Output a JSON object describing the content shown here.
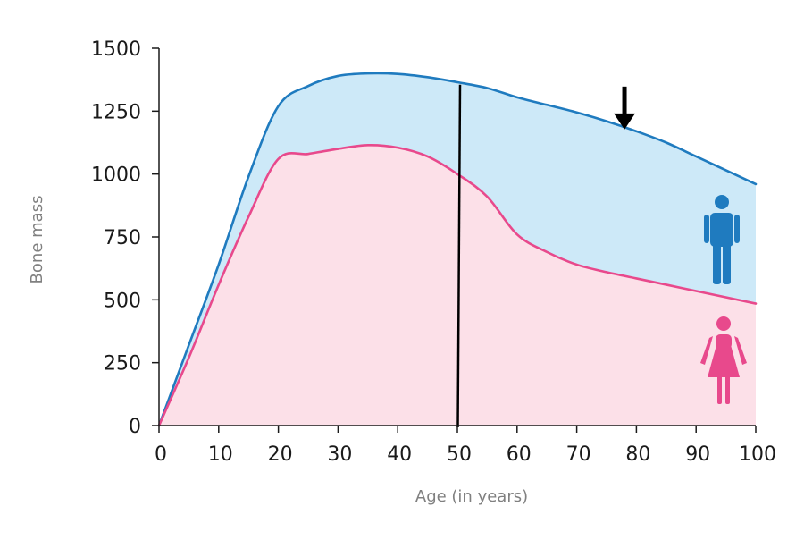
{
  "chart_data": {
    "type": "area",
    "title": "",
    "xlabel": "Age (in years)",
    "ylabel": "Bone mass",
    "xlim": [
      0,
      100
    ],
    "ylim": [
      0,
      1500
    ],
    "x_ticks": [
      0,
      10,
      20,
      30,
      40,
      50,
      60,
      70,
      80,
      90,
      100
    ],
    "y_ticks": [
      0,
      250,
      500,
      750,
      1000,
      1250,
      1500
    ],
    "grid": false,
    "legend": "none",
    "series": [
      {
        "color": "#1f7bbf",
        "fill": "#cde9f8",
        "icon": "man-icon",
        "x": [
          0,
          5,
          10,
          15,
          20,
          25,
          30,
          35,
          40,
          45,
          50,
          55,
          60,
          65,
          70,
          75,
          80,
          85,
          90,
          95,
          100
        ],
        "y": [
          0,
          320,
          640,
          990,
          1270,
          1350,
          1390,
          1400,
          1398,
          1385,
          1365,
          1342,
          1305,
          1275,
          1245,
          1210,
          1170,
          1125,
          1070,
          1015,
          960
        ]
      },
      {
        "color": "#e8498c",
        "fill": "#fce0e8",
        "icon": "woman-icon",
        "x": [
          0,
          5,
          10,
          15,
          20,
          25,
          30,
          35,
          40,
          45,
          50,
          55,
          60,
          65,
          70,
          75,
          80,
          85,
          90,
          95,
          100
        ],
        "y": [
          0,
          270,
          560,
          830,
          1060,
          1080,
          1100,
          1115,
          1105,
          1070,
          1000,
          910,
          760,
          690,
          640,
          610,
          585,
          560,
          535,
          510,
          485
        ]
      }
    ],
    "annotations": [
      {
        "type": "vertical-line",
        "x": 50,
        "y_top": 1355,
        "color": "#000000"
      },
      {
        "type": "arrow-down",
        "x": 78,
        "y_tip": 1170,
        "color": "#000000"
      }
    ]
  }
}
